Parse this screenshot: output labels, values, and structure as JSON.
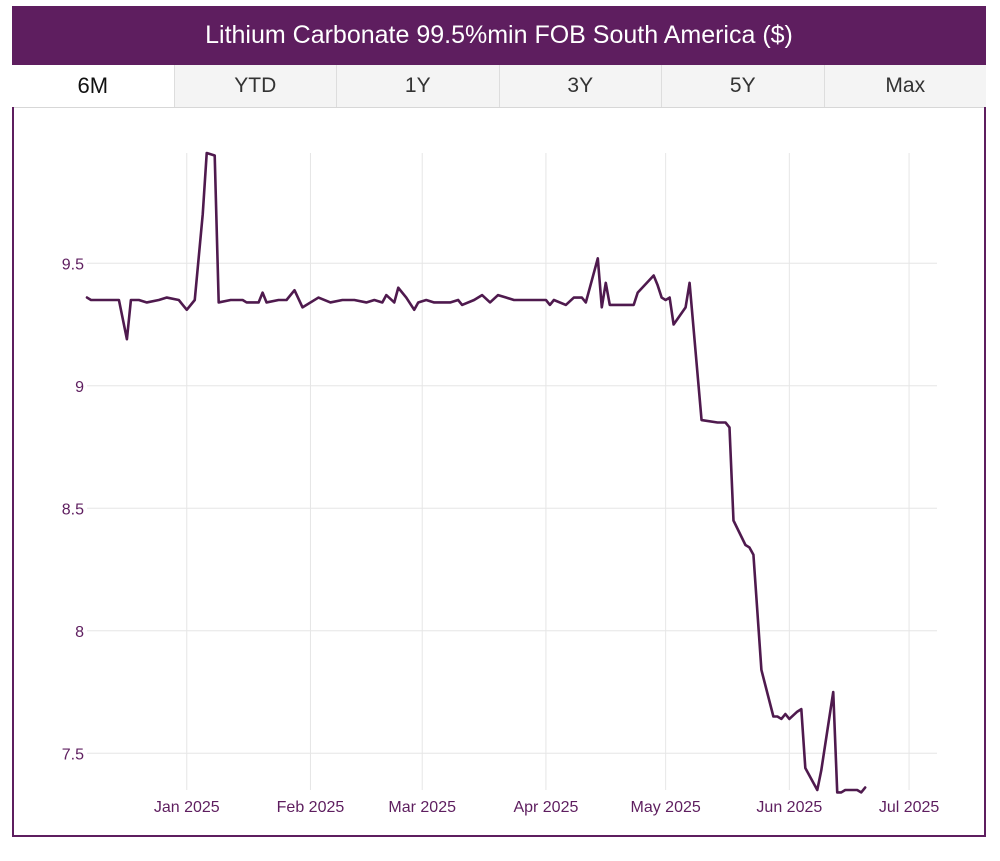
{
  "colors": {
    "brand": "#5e1e5f",
    "line": "#4f1a4e",
    "grid": "#e6e6e6",
    "tick_text": "#5e1e5f",
    "tab_bg": "#f4f4f4",
    "tab_active_bg": "#ffffff"
  },
  "header": {
    "title": "Lithium Carbonate 99.5%min FOB South America ($)"
  },
  "tabs": [
    {
      "label": "6M",
      "active": true
    },
    {
      "label": "YTD",
      "active": false
    },
    {
      "label": "1Y",
      "active": false
    },
    {
      "label": "3Y",
      "active": false
    },
    {
      "label": "5Y",
      "active": false
    },
    {
      "label": "Max",
      "active": false
    }
  ],
  "chart_data": {
    "type": "line",
    "title": "Lithium Carbonate 99.5%min FOB South America ($)",
    "xlabel": "",
    "ylabel": "",
    "grid": true,
    "xlim": [
      "2024-12-07",
      "2025-07-08"
    ],
    "ylim": [
      7.35,
      9.95
    ],
    "yticks": [
      7.5,
      8,
      8.5,
      9,
      9.5
    ],
    "ytick_labels": [
      "7.5",
      "8",
      "8.5",
      "9",
      "9.5"
    ],
    "xticks": [
      "2025-01-01",
      "2025-02-01",
      "2025-03-01",
      "2025-04-01",
      "2025-05-01",
      "2025-06-01",
      "2025-07-01"
    ],
    "xtick_labels": [
      "Jan 2025",
      "Feb 2025",
      "Mar 2025",
      "Apr 2025",
      "May 2025",
      "Jun 2025",
      "Jul 2025"
    ],
    "series": [
      {
        "values": [
          [
            "2024-12-07",
            9.36
          ],
          [
            "2024-12-08",
            9.35
          ],
          [
            "2024-12-10",
            9.35
          ],
          [
            "2024-12-12",
            9.35
          ],
          [
            "2024-12-15",
            9.35
          ],
          [
            "2024-12-16",
            9.27
          ],
          [
            "2024-12-17",
            9.19
          ],
          [
            "2024-12-18",
            9.35
          ],
          [
            "2024-12-20",
            9.35
          ],
          [
            "2024-12-22",
            9.34
          ],
          [
            "2024-12-25",
            9.35
          ],
          [
            "2024-12-27",
            9.36
          ],
          [
            "2024-12-30",
            9.35
          ],
          [
            "2024-12-31",
            9.33
          ],
          [
            "2025-01-01",
            9.31
          ],
          [
            "2025-01-03",
            9.35
          ],
          [
            "2025-01-05",
            9.7
          ],
          [
            "2025-01-06",
            9.95
          ],
          [
            "2025-01-08",
            9.94
          ],
          [
            "2025-01-09",
            9.34
          ],
          [
            "2025-01-12",
            9.35
          ],
          [
            "2025-01-15",
            9.35
          ],
          [
            "2025-01-16",
            9.34
          ],
          [
            "2025-01-19",
            9.34
          ],
          [
            "2025-01-20",
            9.38
          ],
          [
            "2025-01-21",
            9.34
          ],
          [
            "2025-01-24",
            9.35
          ],
          [
            "2025-01-26",
            9.35
          ],
          [
            "2025-01-28",
            9.39
          ],
          [
            "2025-01-30",
            9.32
          ],
          [
            "2025-02-03",
            9.36
          ],
          [
            "2025-02-06",
            9.34
          ],
          [
            "2025-02-09",
            9.35
          ],
          [
            "2025-02-12",
            9.35
          ],
          [
            "2025-02-15",
            9.34
          ],
          [
            "2025-02-17",
            9.35
          ],
          [
            "2025-02-19",
            9.34
          ],
          [
            "2025-02-20",
            9.37
          ],
          [
            "2025-02-22",
            9.34
          ],
          [
            "2025-02-23",
            9.4
          ],
          [
            "2025-02-25",
            9.36
          ],
          [
            "2025-02-27",
            9.31
          ],
          [
            "2025-02-28",
            9.34
          ],
          [
            "2025-03-02",
            9.35
          ],
          [
            "2025-03-04",
            9.34
          ],
          [
            "2025-03-06",
            9.34
          ],
          [
            "2025-03-08",
            9.34
          ],
          [
            "2025-03-10",
            9.35
          ],
          [
            "2025-03-11",
            9.33
          ],
          [
            "2025-03-14",
            9.35
          ],
          [
            "2025-03-16",
            9.37
          ],
          [
            "2025-03-18",
            9.34
          ],
          [
            "2025-03-20",
            9.37
          ],
          [
            "2025-03-22",
            9.36
          ],
          [
            "2025-03-24",
            9.35
          ],
          [
            "2025-03-27",
            9.35
          ],
          [
            "2025-03-30",
            9.35
          ],
          [
            "2025-04-01",
            9.35
          ],
          [
            "2025-04-02",
            9.33
          ],
          [
            "2025-04-03",
            9.35
          ],
          [
            "2025-04-06",
            9.33
          ],
          [
            "2025-04-08",
            9.36
          ],
          [
            "2025-04-10",
            9.36
          ],
          [
            "2025-04-11",
            9.34
          ],
          [
            "2025-04-14",
            9.52
          ],
          [
            "2025-04-15",
            9.32
          ],
          [
            "2025-04-16",
            9.42
          ],
          [
            "2025-04-17",
            9.33
          ],
          [
            "2025-04-20",
            9.33
          ],
          [
            "2025-04-23",
            9.33
          ],
          [
            "2025-04-24",
            9.38
          ],
          [
            "2025-04-28",
            9.45
          ],
          [
            "2025-04-29",
            9.41
          ],
          [
            "2025-04-30",
            9.36
          ],
          [
            "2025-05-01",
            9.35
          ],
          [
            "2025-05-02",
            9.36
          ],
          [
            "2025-05-03",
            9.25
          ],
          [
            "2025-05-06",
            9.32
          ],
          [
            "2025-05-07",
            9.42
          ],
          [
            "2025-05-10",
            8.86
          ],
          [
            "2025-05-14",
            8.85
          ],
          [
            "2025-05-16",
            8.85
          ],
          [
            "2025-05-17",
            8.83
          ],
          [
            "2025-05-18",
            8.45
          ],
          [
            "2025-05-21",
            8.35
          ],
          [
            "2025-05-22",
            8.34
          ],
          [
            "2025-05-23",
            8.31
          ],
          [
            "2025-05-25",
            7.84
          ],
          [
            "2025-05-28",
            7.65
          ],
          [
            "2025-05-29",
            7.65
          ],
          [
            "2025-05-30",
            7.64
          ],
          [
            "2025-05-31",
            7.66
          ],
          [
            "2025-06-01",
            7.64
          ],
          [
            "2025-06-03",
            7.67
          ],
          [
            "2025-06-04",
            7.68
          ],
          [
            "2025-06-05",
            7.44
          ],
          [
            "2025-06-08",
            7.35
          ],
          [
            "2025-06-09",
            7.43
          ],
          [
            "2025-06-12",
            7.75
          ],
          [
            "2025-06-13",
            7.34
          ],
          [
            "2025-06-14",
            7.34
          ],
          [
            "2025-06-15",
            7.35
          ],
          [
            "2025-06-16",
            7.35
          ],
          [
            "2025-06-18",
            7.35
          ],
          [
            "2025-06-19",
            7.34
          ],
          [
            "2025-06-20",
            7.36
          ]
        ]
      }
    ]
  }
}
